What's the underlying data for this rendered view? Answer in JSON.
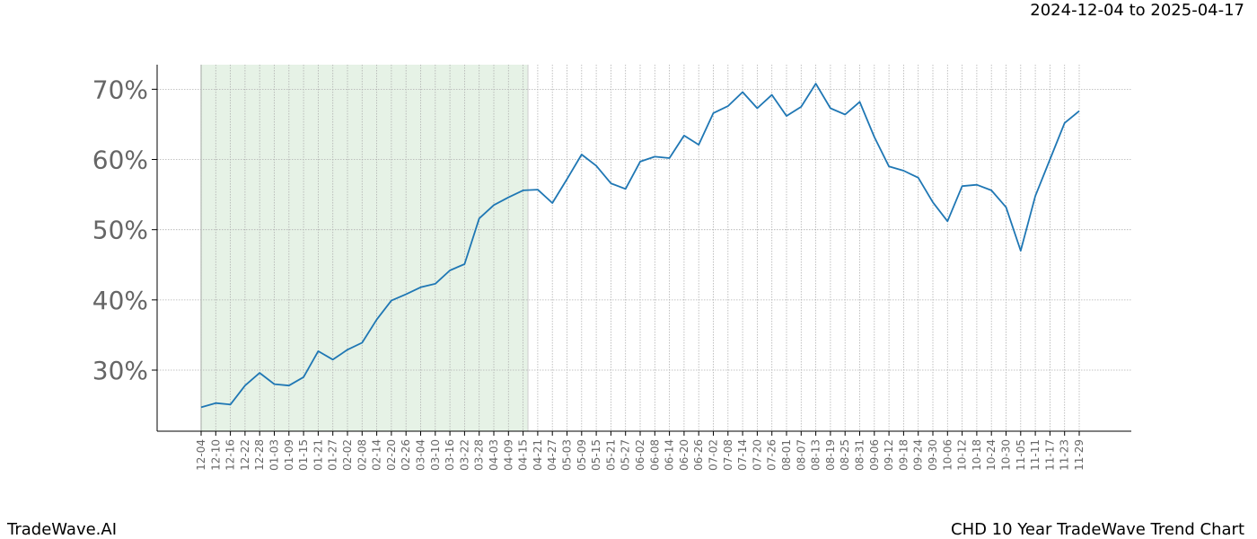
{
  "header": {
    "date_range": "2024-12-04 to 2025-04-17"
  },
  "footer": {
    "brand": "TradeWave.AI",
    "title": "CHD 10 Year TradeWave Trend Chart"
  },
  "colors": {
    "line": "#1f77b4",
    "highlight": "#e6f2e6",
    "grid": "#b0b0b0",
    "tick_text": "#666666"
  },
  "chart_data": {
    "type": "line",
    "title": "",
    "xlabel": "",
    "ylabel": "",
    "ylim": [
      21.3,
      73.5
    ],
    "y_ticks": [
      30,
      40,
      50,
      60,
      70
    ],
    "y_tick_labels": [
      "30%",
      "40%",
      "50%",
      "60%",
      "70%"
    ],
    "grid": true,
    "x_tick_labels": [
      "12-04",
      "12-10",
      "12-16",
      "12-22",
      "12-28",
      "01-03",
      "01-09",
      "01-15",
      "01-21",
      "01-27",
      "02-02",
      "02-08",
      "02-14",
      "02-20",
      "02-26",
      "03-04",
      "03-10",
      "03-16",
      "03-22",
      "03-28",
      "04-03",
      "04-09",
      "04-15",
      "04-21",
      "04-27",
      "05-03",
      "05-09",
      "05-15",
      "05-21",
      "05-27",
      "06-02",
      "06-08",
      "06-14",
      "06-20",
      "06-26",
      "07-02",
      "07-08",
      "07-14",
      "07-20",
      "07-26",
      "08-01",
      "08-07",
      "08-13",
      "08-19",
      "08-25",
      "08-31",
      "09-06",
      "09-12",
      "09-18",
      "09-24",
      "09-30",
      "10-06",
      "10-12",
      "10-18",
      "10-24",
      "10-30",
      "11-05",
      "11-11",
      "11-17",
      "11-23",
      "11-29"
    ],
    "highlight_range": [
      "12-04",
      "04-17"
    ],
    "series": [
      {
        "points": [
          [
            "12-04",
            24.7
          ],
          [
            "12-10",
            25.3
          ],
          [
            "12-16",
            25.1
          ],
          [
            "12-22",
            27.8
          ],
          [
            "12-28",
            29.6
          ],
          [
            "01-03",
            28.0
          ],
          [
            "01-09",
            27.8
          ],
          [
            "01-15",
            29.0
          ],
          [
            "01-21",
            32.7
          ],
          [
            "01-27",
            31.5
          ],
          [
            "02-02",
            32.9
          ],
          [
            "02-08",
            33.9
          ],
          [
            "02-14",
            37.2
          ],
          [
            "02-20",
            39.9
          ],
          [
            "02-26",
            40.8
          ],
          [
            "03-04",
            41.8
          ],
          [
            "03-10",
            42.3
          ],
          [
            "03-16",
            44.2
          ],
          [
            "03-22",
            45.1
          ],
          [
            "03-28",
            51.6
          ],
          [
            "04-03",
            53.5
          ],
          [
            "04-09",
            54.6
          ],
          [
            "04-15",
            55.6
          ],
          [
            "04-21",
            55.7
          ],
          [
            "04-27",
            53.8
          ],
          [
            "05-03",
            57.2
          ],
          [
            "05-09",
            60.7
          ],
          [
            "05-15",
            59.1
          ],
          [
            "05-21",
            56.6
          ],
          [
            "05-27",
            55.8
          ],
          [
            "06-02",
            59.7
          ],
          [
            "06-08",
            60.4
          ],
          [
            "06-14",
            60.2
          ],
          [
            "06-20",
            63.4
          ],
          [
            "06-26",
            62.1
          ],
          [
            "07-02",
            66.6
          ],
          [
            "07-08",
            67.6
          ],
          [
            "07-14",
            69.6
          ],
          [
            "07-20",
            67.3
          ],
          [
            "07-26",
            69.2
          ],
          [
            "08-01",
            66.2
          ],
          [
            "08-07",
            67.5
          ],
          [
            "08-13",
            70.8
          ],
          [
            "08-19",
            67.3
          ],
          [
            "08-25",
            66.4
          ],
          [
            "08-31",
            68.2
          ],
          [
            "09-06",
            63.2
          ],
          [
            "09-12",
            59.0
          ],
          [
            "09-18",
            58.4
          ],
          [
            "09-24",
            57.4
          ],
          [
            "09-30",
            53.9
          ],
          [
            "10-06",
            51.2
          ],
          [
            "10-12",
            56.2
          ],
          [
            "10-18",
            56.4
          ],
          [
            "10-24",
            55.6
          ],
          [
            "10-30",
            53.2
          ],
          [
            "11-05",
            47.0
          ],
          [
            "11-11",
            54.8
          ],
          [
            "11-17",
            60.0
          ],
          [
            "11-23",
            65.2
          ],
          [
            "11-29",
            66.9
          ]
        ]
      }
    ]
  }
}
